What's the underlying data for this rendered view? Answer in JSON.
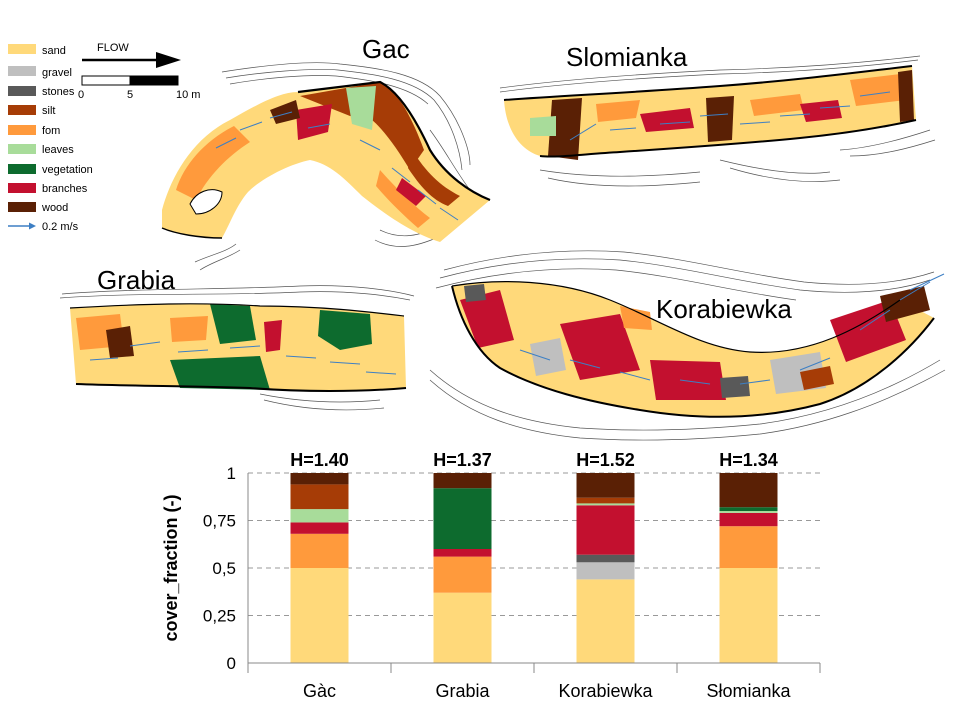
{
  "legend": {
    "items": [
      {
        "key": "sand",
        "label": "sand",
        "color": "#FFD97A"
      },
      {
        "key": "gravel",
        "label": "gravel",
        "color": "#BFBFBF"
      },
      {
        "key": "stones",
        "label": "stones",
        "color": "#595959"
      },
      {
        "key": "silt",
        "label": "silt",
        "color": "#A63C06"
      },
      {
        "key": "fom",
        "label": "fom",
        "color": "#FF9A3C"
      },
      {
        "key": "leaves",
        "label": "leaves",
        "color": "#A8DC9A"
      },
      {
        "key": "vegetation",
        "label": "vegetation",
        "color": "#0D6B2E"
      },
      {
        "key": "branches",
        "label": "branches",
        "color": "#C3102F"
      },
      {
        "key": "wood",
        "label": "wood",
        "color": "#5A2005"
      }
    ],
    "velocity_label": "0.2 m/s",
    "arrow_color": "#3D7FC4"
  },
  "flow": {
    "label": "FLOW",
    "scale_ticks": [
      "0",
      "5",
      "10 m"
    ]
  },
  "maps": {
    "gac": {
      "title": "Gac"
    },
    "slomianka": {
      "title": "Slomianka"
    },
    "grabia": {
      "title": "Grabia"
    },
    "korabiewka": {
      "title": "Korabiewka"
    }
  },
  "chart_data": {
    "type": "bar",
    "stacked": true,
    "categories": [
      "Gàc",
      "Grabia",
      "Korabiewka",
      "Słomianka"
    ],
    "annotations": [
      "H=1.40",
      "H=1.37",
      "H=1.52",
      "H=1.34"
    ],
    "ylabel": "cover_fraction (-)",
    "ylim": [
      0,
      1
    ],
    "yticks": [
      0,
      0.25,
      0.5,
      0.75,
      1
    ],
    "ytick_labels": [
      "0",
      "0,25",
      "0,5",
      "0,75",
      "1"
    ],
    "grid": "horizontal dashed",
    "series": [
      {
        "name": "sand",
        "color": "#FFD97A",
        "values": [
          0.5,
          0.37,
          0.44,
          0.5
        ]
      },
      {
        "name": "gravel",
        "color": "#BFBFBF",
        "values": [
          0.0,
          0.0,
          0.09,
          0.0
        ]
      },
      {
        "name": "stones",
        "color": "#595959",
        "values": [
          0.0,
          0.0,
          0.04,
          0.0
        ]
      },
      {
        "name": "fom",
        "color": "#FF9A3C",
        "values": [
          0.18,
          0.19,
          0.0,
          0.22
        ]
      },
      {
        "name": "branches",
        "color": "#C3102F",
        "values": [
          0.06,
          0.04,
          0.26,
          0.07
        ]
      },
      {
        "name": "leaves",
        "color": "#A8DC9A",
        "values": [
          0.07,
          0.0,
          0.01,
          0.01
        ]
      },
      {
        "name": "vegetation",
        "color": "#0D6B2E",
        "values": [
          0.0,
          0.32,
          0.0,
          0.02
        ]
      },
      {
        "name": "silt",
        "color": "#A63C06",
        "values": [
          0.13,
          0.0,
          0.03,
          0.0
        ]
      },
      {
        "name": "wood",
        "color": "#5A2005",
        "values": [
          0.06,
          0.08,
          0.13,
          0.18
        ]
      }
    ]
  }
}
